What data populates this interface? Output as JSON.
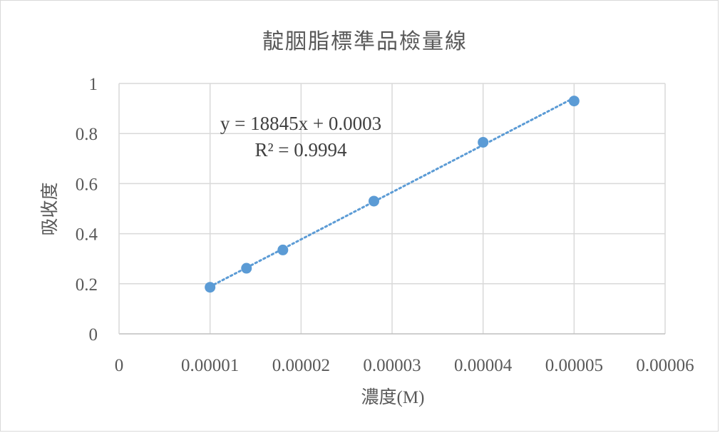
{
  "chart_data": {
    "type": "scatter",
    "title": "靛胭脂標準品檢量線",
    "xlabel": "濃度(M)",
    "ylabel": "吸收度",
    "xlim": [
      0,
      6e-05
    ],
    "ylim": [
      0,
      1
    ],
    "x_ticks": [
      "0",
      "0.00001",
      "0.00002",
      "0.00003",
      "0.00004",
      "0.00005",
      "0.00006"
    ],
    "y_ticks": [
      "0",
      "0.2",
      "0.4",
      "0.6",
      "0.8",
      "1"
    ],
    "x_tick_values": [
      0,
      1e-05,
      2e-05,
      3e-05,
      4e-05,
      5e-05,
      6e-05
    ],
    "y_tick_values": [
      0,
      0.2,
      0.4,
      0.6,
      0.8,
      1
    ],
    "grid": true,
    "legend": "none",
    "series": [
      {
        "x": [
          1e-05,
          1.4e-05,
          1.8e-05,
          2.8e-05,
          4e-05,
          5e-05
        ],
        "y": [
          0.186,
          0.262,
          0.335,
          0.53,
          0.765,
          0.93
        ],
        "color": "#5b9bd5",
        "marker": "circle"
      }
    ],
    "trendline": {
      "type": "linear",
      "slope": 18845,
      "intercept": 0.0003,
      "style": "dotted",
      "color": "#5b9bd5",
      "equation": "y = 18845x + 0.0003",
      "r_squared": "R² = 0.9994"
    }
  }
}
